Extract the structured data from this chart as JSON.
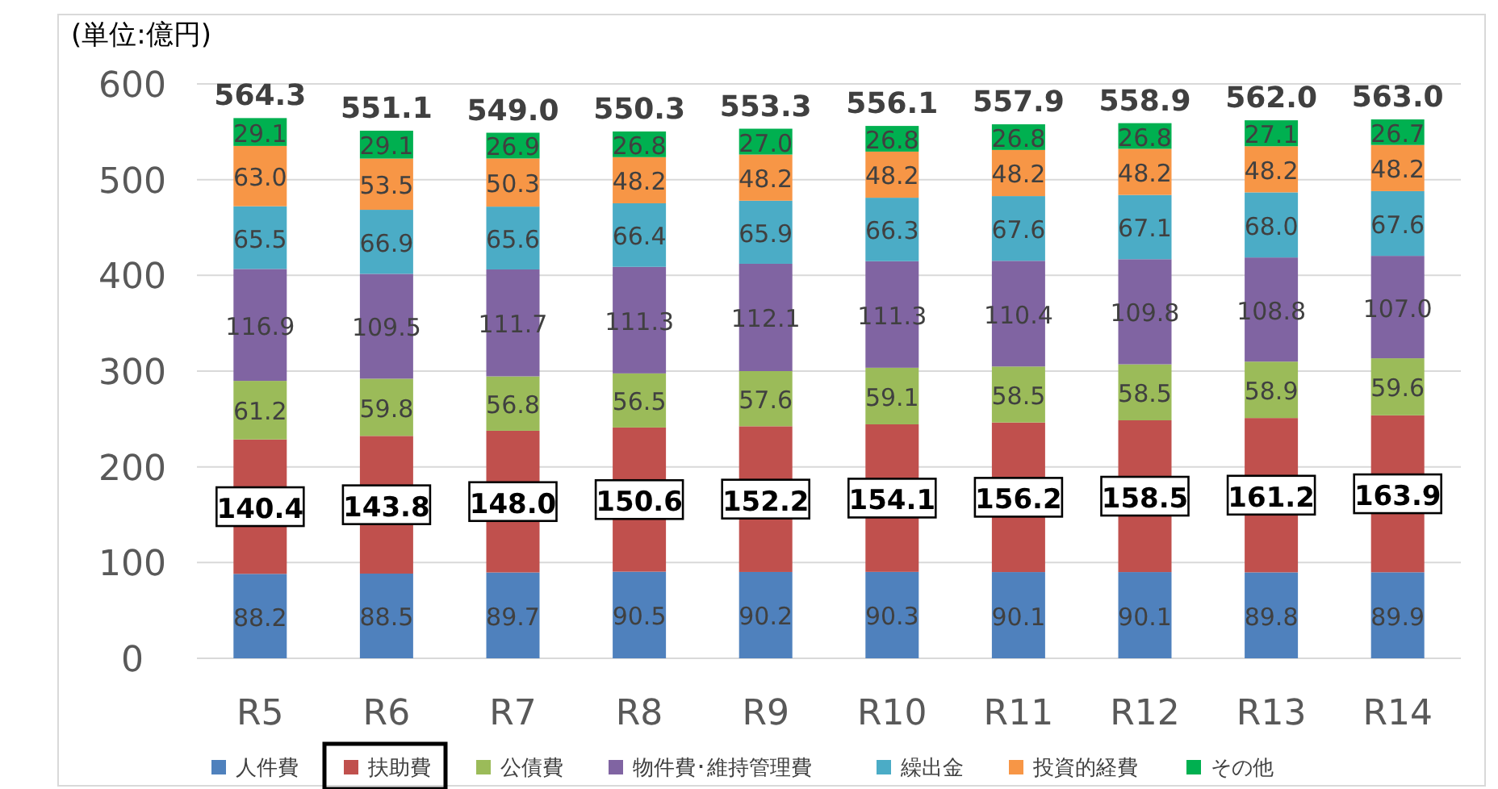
{
  "chart_data": {
    "type": "bar",
    "stacked": true,
    "title": "(単位:億円)",
    "categories": [
      "R5",
      "R6",
      "R7",
      "R8",
      "R9",
      "R10",
      "R11",
      "R12",
      "R13",
      "R14"
    ],
    "series": [
      {
        "name": "人件費",
        "color": "#4f81bd",
        "values": [
          88.2,
          88.5,
          89.7,
          90.5,
          90.2,
          90.3,
          90.1,
          90.1,
          89.8,
          89.9
        ],
        "value_labels": [
          "88.2",
          "88.5",
          "89.7",
          "90.5",
          "90.2",
          "90.3",
          "90.1",
          "90.1",
          "89.8",
          "89.9"
        ]
      },
      {
        "name": "扶助費",
        "color": "#c0504d",
        "values": [
          140.4,
          143.8,
          148.0,
          150.6,
          152.2,
          154.1,
          156.2,
          158.5,
          161.2,
          163.9
        ],
        "value_labels": [
          "140.4",
          "143.8",
          "148.0",
          "150.6",
          "152.2",
          "154.1",
          "156.2",
          "158.5",
          "161.2",
          "163.9"
        ]
      },
      {
        "name": "公債費",
        "color": "#9bbb59",
        "values": [
          61.2,
          59.8,
          56.8,
          56.5,
          57.6,
          59.1,
          58.5,
          58.5,
          58.9,
          59.6
        ],
        "value_labels": [
          "61.2",
          "59.8",
          "56.8",
          "56.5",
          "57.6",
          "59.1",
          "58.5",
          "58.5",
          "58.9",
          "59.6"
        ]
      },
      {
        "name": "物件費･維持管理費",
        "color": "#8064a2",
        "values": [
          116.9,
          109.5,
          111.7,
          111.3,
          112.1,
          111.3,
          110.4,
          109.8,
          108.8,
          107.0
        ],
        "value_labels": [
          "116.9",
          "109.5",
          "111.7",
          "111.3",
          "112.1",
          "111.3",
          "110.4",
          "109.8",
          "108.8",
          "107.0"
        ]
      },
      {
        "name": "繰出金",
        "color": "#4bacc6",
        "values": [
          65.5,
          66.9,
          65.6,
          66.4,
          65.9,
          66.3,
          67.6,
          67.1,
          68.0,
          67.6
        ],
        "value_labels": [
          "65.5",
          "66.9",
          "65.6",
          "66.4",
          "65.9",
          "66.3",
          "67.6",
          "67.1",
          "68.0",
          "67.6"
        ]
      },
      {
        "name": "投資的経費",
        "color": "#f79646",
        "values": [
          63.0,
          53.5,
          50.3,
          48.2,
          48.2,
          48.2,
          48.2,
          48.2,
          48.2,
          48.2
        ],
        "value_labels": [
          "63.0",
          "53.5",
          "50.3",
          "48.2",
          "48.2",
          "48.2",
          "48.2",
          "48.2",
          "48.2",
          "48.2"
        ]
      },
      {
        "name": "その他",
        "color": "#00b050",
        "values": [
          29.1,
          29.1,
          26.9,
          26.8,
          27.0,
          26.8,
          26.8,
          26.8,
          27.1,
          26.7
        ],
        "value_labels": [
          "29.1",
          "29.1",
          "26.9",
          "26.8",
          "27.0",
          "26.8",
          "26.8",
          "26.8",
          "27.1",
          "26.7"
        ]
      }
    ],
    "totals": [
      "564.3",
      "551.1",
      "549.0",
      "550.3",
      "553.3",
      "556.1",
      "557.9",
      "558.9",
      "562.0",
      "563.0"
    ],
    "ylim": [
      0,
      600
    ],
    "yticks": [
      0,
      100,
      200,
      300,
      400,
      500,
      600
    ],
    "grid": "y",
    "legend": "bottom"
  }
}
